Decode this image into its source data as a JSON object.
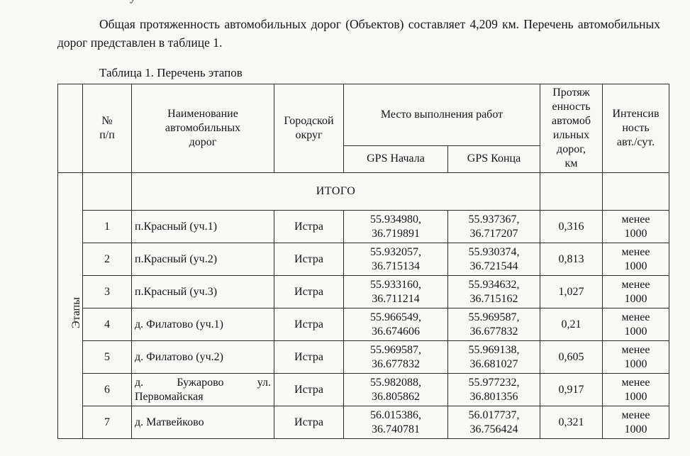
{
  "page": {
    "cut_fragment": "у"
  },
  "document": {
    "paragraph": "Общая протяженность автомобильных дорог (Объектов) составляет 4,209 км. Перечень автомобильных дорог представлен в таблице 1.",
    "table_caption": "Таблица 1. Перечень этапов"
  },
  "table": {
    "stage_label": "Этапы",
    "totals_label": "ИТОГО",
    "header": {
      "num": "№\nп/п",
      "name": "Наименование\nавтомобильных\nдорог",
      "district": "Городской\nокруг",
      "place": "Место выполнения работ",
      "gps_start": "GPS Начала",
      "gps_end": "GPS Конца",
      "length": "Протяж\nенность\nавтомоб\nильных\nдорог,\nкм",
      "intensity": "Интенсив\nность\nавт./сут."
    },
    "rows": [
      {
        "num": "1",
        "name": "п.Красный (уч.1)",
        "district": "Истра",
        "gps_start": "55.934980,\n36.719891",
        "gps_end": "55.937367,\n36.717207",
        "length_km": "0,316",
        "intensity": "менее\n1000"
      },
      {
        "num": "2",
        "name": "п.Красный (уч.2)",
        "district": "Истра",
        "gps_start": "55.932057,\n36.715134",
        "gps_end": "55.930374,\n36.721544",
        "length_km": "0,813",
        "intensity": "менее\n1000"
      },
      {
        "num": "3",
        "name": "п.Красный (уч.3)",
        "district": "Истра",
        "gps_start": "55.933160,\n36.711214",
        "gps_end": "55.934632,\n36.715162",
        "length_km": "1,027",
        "intensity": "менее\n1000"
      },
      {
        "num": "4",
        "name": "д. Филатово (уч.1)",
        "district": "Истра",
        "gps_start": "55.966549,\n36.674606",
        "gps_end": "55.969587,\n36.677832",
        "length_km": "0,21",
        "intensity": "менее\n1000"
      },
      {
        "num": "5",
        "name": "д. Филатово (уч.2)",
        "district": "Истра",
        "gps_start": "55.969587,\n36.677832",
        "gps_end": "55.969138,\n36.681027",
        "length_km": "0,605",
        "intensity": "менее\n1000"
      },
      {
        "num": "6",
        "name": "д. Бужарово ул. Первомайская",
        "district": "Истра",
        "gps_start": "55.982088,\n36.805862",
        "gps_end": "55.977232,\n36.801356",
        "length_km": "0,917",
        "intensity": "менее\n1000"
      },
      {
        "num": "7",
        "name": "д. Матвейково",
        "district": "Истра",
        "gps_start": "56.015386,\n36.740781",
        "gps_end": "56.017737,\n36.756424",
        "length_km": "0,321",
        "intensity": "менее\n1000"
      }
    ]
  }
}
